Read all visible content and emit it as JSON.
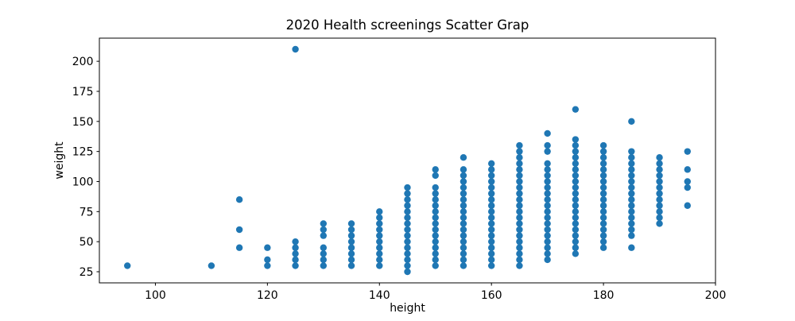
{
  "chart_data": {
    "type": "scatter",
    "title": "2020 Health screenings Scatter Grap",
    "xlabel": "height",
    "ylabel": "weight",
    "xlim": [
      90,
      200
    ],
    "ylim": [
      15.75,
      219.25
    ],
    "xticks": [
      100,
      120,
      140,
      160,
      180,
      200
    ],
    "yticks": [
      25,
      50,
      75,
      100,
      125,
      150,
      175,
      200
    ],
    "grid": false,
    "legend": false,
    "marker": {
      "shape": "circle",
      "color": "#1f77b4",
      "radius_px": 4.2
    },
    "columns": [
      {
        "height": 95,
        "weights": [
          30
        ]
      },
      {
        "height": 110,
        "weights": [
          30
        ]
      },
      {
        "height": 115,
        "weights": [
          45,
          60,
          85
        ]
      },
      {
        "height": 120,
        "weights": [
          30,
          35,
          45
        ]
      },
      {
        "height": 125,
        "weights": [
          30,
          35,
          40,
          45,
          50,
          210
        ]
      },
      {
        "height": 130,
        "weights": [
          30,
          35,
          40,
          45,
          55,
          60,
          65
        ]
      },
      {
        "height": 135,
        "weights": [
          30,
          35,
          40,
          45,
          50,
          55,
          60,
          65
        ]
      },
      {
        "height": 140,
        "weights": [
          30,
          35,
          40,
          45,
          50,
          55,
          60,
          65,
          70,
          75
        ]
      },
      {
        "height": 145,
        "weights": [
          25,
          30,
          35,
          40,
          45,
          50,
          55,
          60,
          65,
          70,
          75,
          80,
          85,
          90,
          95
        ]
      },
      {
        "height": 150,
        "weights": [
          30,
          35,
          40,
          45,
          50,
          55,
          60,
          65,
          70,
          75,
          80,
          85,
          90,
          95,
          105,
          110
        ]
      },
      {
        "height": 155,
        "weights": [
          30,
          35,
          40,
          45,
          50,
          55,
          60,
          65,
          70,
          75,
          80,
          85,
          90,
          95,
          100,
          105,
          110,
          120
        ]
      },
      {
        "height": 160,
        "weights": [
          30,
          35,
          40,
          45,
          50,
          55,
          60,
          65,
          70,
          75,
          80,
          85,
          90,
          95,
          100,
          105,
          110,
          115
        ]
      },
      {
        "height": 165,
        "weights": [
          30,
          35,
          40,
          45,
          50,
          55,
          60,
          65,
          70,
          75,
          80,
          85,
          90,
          95,
          100,
          105,
          110,
          115,
          120,
          125,
          130
        ]
      },
      {
        "height": 170,
        "weights": [
          35,
          40,
          45,
          50,
          55,
          60,
          65,
          70,
          75,
          80,
          85,
          90,
          95,
          100,
          105,
          110,
          115,
          125,
          130,
          140
        ]
      },
      {
        "height": 175,
        "weights": [
          40,
          45,
          50,
          55,
          60,
          65,
          70,
          75,
          80,
          85,
          90,
          95,
          100,
          105,
          110,
          115,
          120,
          125,
          130,
          135,
          160
        ]
      },
      {
        "height": 180,
        "weights": [
          45,
          50,
          55,
          60,
          65,
          70,
          75,
          80,
          85,
          90,
          95,
          100,
          105,
          110,
          115,
          120,
          125,
          130
        ]
      },
      {
        "height": 185,
        "weights": [
          45,
          55,
          60,
          65,
          70,
          75,
          80,
          85,
          90,
          95,
          100,
          105,
          110,
          115,
          120,
          125,
          150
        ]
      },
      {
        "height": 190,
        "weights": [
          65,
          70,
          75,
          80,
          85,
          90,
          95,
          100,
          105,
          110,
          115,
          120
        ]
      },
      {
        "height": 195,
        "weights": [
          80,
          95,
          100,
          110,
          125
        ]
      }
    ]
  }
}
